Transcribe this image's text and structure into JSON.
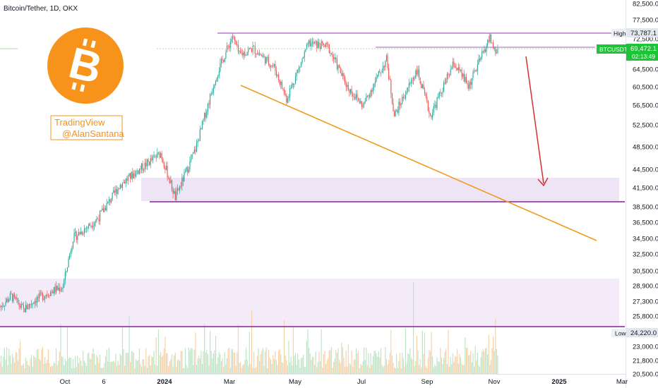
{
  "chart_data": {
    "type": "candlestick",
    "title": "Bitcoin/Tether, 1D, OKX",
    "symbol": "BTCUSDT",
    "last_price": "69,472.1",
    "countdown": "02:13:49",
    "high_label": "High",
    "high_value": "73,787.1",
    "low_label": "Low",
    "low_value": "24,220.0",
    "watermark": [
      "TradingView",
      "@AlanSantana"
    ],
    "y_ticks": [
      "82,500.0",
      "77,500.0",
      "72,500.0",
      "64,500.0",
      "60,500.0",
      "56,500.0",
      "52,500.0",
      "48,500.0",
      "44,500.0",
      "41,500.0",
      "38,500.0",
      "36,500.0",
      "34,500.0",
      "32,500.0",
      "30,500.0",
      "28,900.0",
      "27,300.0",
      "25,800.0",
      "23,000.0",
      "21,800.0",
      "20,500.0"
    ],
    "x_ticks": [
      "Oct",
      "6",
      "2024",
      "Mar",
      "May",
      "Jul",
      "Sep",
      "Nov",
      "2025",
      "Mar"
    ],
    "y_scale": "log",
    "ohlc": [
      {
        "date": "2023-08-20",
        "close": 26100
      },
      {
        "date": "2023-08-30",
        "close": 27200
      },
      {
        "date": "2023-09-10",
        "close": 25800
      },
      {
        "date": "2023-09-20",
        "close": 26800
      },
      {
        "date": "2023-10-01",
        "close": 27500
      },
      {
        "date": "2023-10-15",
        "close": 28200
      },
      {
        "date": "2023-10-24",
        "close": 33900
      },
      {
        "date": "2023-11-15",
        "close": 36500
      },
      {
        "date": "2023-12-05",
        "close": 41500
      },
      {
        "date": "2023-12-20",
        "close": 43700
      },
      {
        "date": "2024-01-10",
        "close": 46800
      },
      {
        "date": "2024-01-23",
        "close": 39500
      },
      {
        "date": "2024-02-10",
        "close": 47500
      },
      {
        "date": "2024-02-28",
        "close": 62500
      },
      {
        "date": "2024-03-14",
        "close": 73000
      },
      {
        "date": "2024-03-20",
        "close": 67800
      },
      {
        "date": "2024-04-01",
        "close": 69700
      },
      {
        "date": "2024-04-20",
        "close": 64900
      },
      {
        "date": "2024-05-01",
        "close": 57500
      },
      {
        "date": "2024-05-21",
        "close": 71000
      },
      {
        "date": "2024-06-07",
        "close": 70000
      },
      {
        "date": "2024-06-24",
        "close": 60300
      },
      {
        "date": "2024-07-08",
        "close": 56000
      },
      {
        "date": "2024-07-29",
        "close": 66800
      },
      {
        "date": "2024-08-05",
        "close": 54000
      },
      {
        "date": "2024-08-25",
        "close": 64200
      },
      {
        "date": "2024-09-06",
        "close": 53900
      },
      {
        "date": "2024-09-27",
        "close": 65800
      },
      {
        "date": "2024-10-10",
        "close": 60300
      },
      {
        "date": "2024-10-29",
        "close": 72600
      },
      {
        "date": "2024-11-03",
        "close": 68300
      },
      {
        "date": "2024-11-05",
        "close": 69472
      }
    ],
    "annotations": [
      {
        "type": "resistance_line",
        "level": 73787.1
      },
      {
        "type": "resistance_line",
        "level": 69472.1
      },
      {
        "type": "support_zone",
        "from": 39500,
        "to": 43500
      },
      {
        "type": "support_line",
        "level": 39500
      },
      {
        "type": "support_zone",
        "from": 24220,
        "to": 29500
      },
      {
        "type": "support_line",
        "level": 24220
      },
      {
        "type": "trend_line",
        "from": {
          "date": "2024-03-14",
          "value": 61000
        },
        "to": {
          "date": "2025-02-20",
          "value": 34000
        }
      },
      {
        "type": "arrow",
        "from": {
          "date": "2024-11-08",
          "value": 72000
        },
        "to": {
          "date": "2024-12-05",
          "value": 41000
        }
      }
    ],
    "colors": {
      "up": "#26a69a",
      "down": "#ef5350",
      "trend": "#f7931a",
      "arrow": "#d32f2f",
      "zone": "#ede4f6",
      "line": "#8a2be2",
      "price_tag": "#1ec337"
    }
  }
}
